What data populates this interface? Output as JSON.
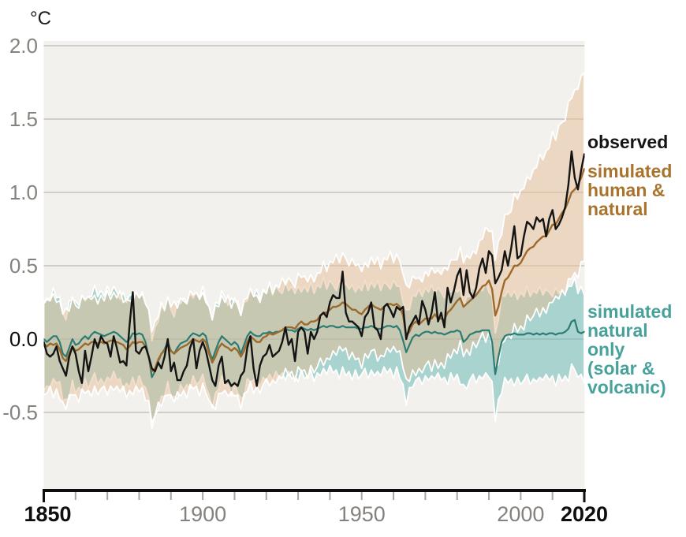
{
  "unit_label": "°C",
  "colors": {
    "plot_background": "#f2f1ee",
    "gridline": "#ccc9c5",
    "axis": "#0e0e0e",
    "minor_tick": "#a8a6a2",
    "muted_label": "#85827d",
    "observed_line": "#141414",
    "human_natural_line": "#9c6a2d",
    "natural_only_line": "#2d7c74",
    "human_natural_band": "#e6bd96",
    "natural_only_band": "#6dbab4",
    "band_outline": "#ffffff",
    "legend_observed_text": "#141414",
    "legend_human_natural_text": "#a9732e",
    "legend_natural_only_text": "#47a29b"
  },
  "legend": {
    "observed": {
      "lines": [
        "observed"
      ]
    },
    "human_natural": {
      "lines": [
        "simulated",
        "human &",
        "natural"
      ]
    },
    "natural_only": {
      "lines": [
        "simulated",
        "natural only",
        "(solar &",
        "volcanic)"
      ]
    }
  },
  "chart_data": {
    "type": "line",
    "title": "",
    "xlabel": "",
    "ylabel": "°C",
    "x_start": 1850,
    "x_end": 2020,
    "ylim": [
      -1.05,
      2.03
    ],
    "grid": true,
    "legend_position": "right",
    "y_ticks": [
      {
        "value": 2.0,
        "label": "2.0"
      },
      {
        "value": 1.5,
        "label": "1.5"
      },
      {
        "value": 1.0,
        "label": "1.0"
      },
      {
        "value": 0.5,
        "label": "0.5"
      },
      {
        "value": 0.0,
        "label": "0.0",
        "strong": true
      },
      {
        "value": -0.5,
        "label": "-0.5"
      }
    ],
    "x_ticks": [
      {
        "year": 1850,
        "label": "1850",
        "major": true
      },
      {
        "year": 1860
      },
      {
        "year": 1870
      },
      {
        "year": 1880
      },
      {
        "year": 1890
      },
      {
        "year": 1900,
        "label": "1900"
      },
      {
        "year": 1910
      },
      {
        "year": 1920
      },
      {
        "year": 1930
      },
      {
        "year": 1940
      },
      {
        "year": 1950,
        "label": "1950"
      },
      {
        "year": 1960
      },
      {
        "year": 1970
      },
      {
        "year": 1980
      },
      {
        "year": 1990
      },
      {
        "year": 2000,
        "label": "2000"
      },
      {
        "year": 2010
      },
      {
        "year": 2020,
        "label": "2020",
        "major": true
      }
    ],
    "band_jitter": [
      0.0,
      0.05,
      0.02,
      0.08,
      0.01,
      0.06,
      0.03,
      0.09,
      0.02,
      0.07,
      0.04,
      0.01,
      0.08,
      0.03,
      0.06,
      0.02,
      0.05
    ],
    "series": [
      {
        "id": "observed",
        "name": "observed",
        "color": "#141414",
        "values": [
          -0.02,
          -0.1,
          -0.12,
          -0.1,
          -0.05,
          -0.15,
          -0.2,
          -0.25,
          -0.12,
          -0.05,
          -0.1,
          -0.22,
          -0.3,
          -0.08,
          -0.22,
          -0.12,
          0.0,
          -0.06,
          0.02,
          -0.02,
          -0.03,
          -0.12,
          0.02,
          -0.06,
          -0.16,
          -0.15,
          -0.18,
          0.1,
          0.32,
          -0.08,
          -0.1,
          -0.06,
          -0.05,
          -0.12,
          -0.2,
          -0.22,
          -0.16,
          -0.2,
          -0.12,
          0.0,
          -0.22,
          -0.16,
          -0.28,
          -0.28,
          -0.22,
          -0.18,
          -0.06,
          0.0,
          -0.2,
          -0.08,
          -0.02,
          -0.08,
          -0.18,
          -0.28,
          -0.32,
          -0.18,
          -0.12,
          -0.3,
          -0.28,
          -0.32,
          -0.3,
          -0.32,
          -0.25,
          -0.22,
          -0.06,
          0.02,
          -0.2,
          -0.32,
          -0.18,
          -0.12,
          -0.1,
          -0.04,
          -0.12,
          -0.1,
          -0.08,
          -0.02,
          0.08,
          -0.04,
          0.0,
          -0.15,
          0.05,
          0.08,
          0.05,
          -0.1,
          0.05,
          0.0,
          0.05,
          0.16,
          0.18,
          0.15,
          0.25,
          0.3,
          0.28,
          0.28,
          0.46,
          0.18,
          0.12,
          0.12,
          0.1,
          0.08,
          0.02,
          0.15,
          0.18,
          0.25,
          0.08,
          0.06,
          0.0,
          0.22,
          0.24,
          0.2,
          0.15,
          0.22,
          0.2,
          0.22,
          0.0,
          0.08,
          0.12,
          0.16,
          0.1,
          0.26,
          0.2,
          0.1,
          0.18,
          0.32,
          0.12,
          0.18,
          0.08,
          0.35,
          0.25,
          0.33,
          0.43,
          0.48,
          0.3,
          0.47,
          0.32,
          0.28,
          0.35,
          0.48,
          0.55,
          0.45,
          0.6,
          0.57,
          0.38,
          0.42,
          0.47,
          0.6,
          0.5,
          0.62,
          0.77,
          0.55,
          0.57,
          0.7,
          0.8,
          0.78,
          0.75,
          0.83,
          0.8,
          0.82,
          0.7,
          0.82,
          0.88,
          0.75,
          0.78,
          0.83,
          0.9,
          1.05,
          1.28,
          1.1,
          1.02,
          1.15,
          1.26
        ]
      },
      {
        "id": "human_natural",
        "name": "simulated human & natural",
        "color": "#9c6a2d",
        "band": {
          "fill": "#e6bd96",
          "fill_opacity": 0.5,
          "stroke": "#ffffff",
          "hi_offset": 0.27,
          "lo_offset": 0.28,
          "hi_phase": 0,
          "lo_phase": 9,
          "widen_after": 1985,
          "hi_widen": 0.011,
          "lo_widen": 0.008
        },
        "values": [
          -0.03,
          -0.05,
          -0.03,
          -0.04,
          -0.03,
          -0.07,
          -0.13,
          -0.15,
          -0.1,
          -0.05,
          -0.08,
          -0.07,
          -0.05,
          -0.03,
          -0.04,
          -0.02,
          -0.02,
          -0.03,
          -0.02,
          -0.03,
          -0.02,
          -0.01,
          -0.01,
          -0.02,
          -0.03,
          -0.04,
          -0.07,
          -0.05,
          -0.02,
          -0.03,
          -0.02,
          -0.02,
          -0.05,
          -0.12,
          -0.22,
          -0.2,
          -0.14,
          -0.1,
          -0.08,
          -0.04,
          -0.08,
          -0.1,
          -0.08,
          -0.06,
          -0.05,
          -0.04,
          -0.02,
          0.0,
          -0.01,
          -0.02,
          0.0,
          -0.02,
          -0.1,
          -0.16,
          -0.12,
          -0.06,
          -0.03,
          -0.05,
          -0.06,
          -0.08,
          -0.06,
          -0.08,
          -0.12,
          -0.08,
          -0.02,
          0.02,
          0.0,
          -0.02,
          -0.02,
          0.01,
          0.02,
          0.04,
          0.03,
          0.04,
          0.05,
          0.06,
          0.08,
          0.08,
          0.08,
          0.07,
          0.1,
          0.12,
          0.1,
          0.1,
          0.12,
          0.12,
          0.13,
          0.16,
          0.18,
          0.18,
          0.2,
          0.22,
          0.22,
          0.23,
          0.25,
          0.24,
          0.22,
          0.2,
          0.2,
          0.18,
          0.17,
          0.2,
          0.22,
          0.24,
          0.22,
          0.21,
          0.2,
          0.22,
          0.24,
          0.24,
          0.23,
          0.24,
          0.22,
          0.16,
          0.02,
          0.05,
          0.1,
          0.12,
          0.1,
          0.12,
          0.14,
          0.14,
          0.14,
          0.17,
          0.14,
          0.14,
          0.13,
          0.18,
          0.2,
          0.23,
          0.26,
          0.28,
          0.22,
          0.24,
          0.26,
          0.28,
          0.3,
          0.33,
          0.36,
          0.37,
          0.4,
          0.34,
          0.16,
          0.22,
          0.32,
          0.4,
          0.42,
          0.46,
          0.5,
          0.5,
          0.52,
          0.56,
          0.6,
          0.62,
          0.63,
          0.66,
          0.68,
          0.7,
          0.7,
          0.74,
          0.78,
          0.78,
          0.82,
          0.86,
          0.89,
          0.94,
          1.0,
          1.02,
          1.05,
          1.1,
          1.16
        ]
      },
      {
        "id": "natural_only",
        "name": "simulated natural only (solar & volcanic)",
        "color": "#2d7c74",
        "band": {
          "fill": "#6dbab4",
          "fill_opacity": 0.55,
          "stroke": "#ffffff",
          "hi_offset": 0.24,
          "lo_offset": 0.27,
          "hi_phase": 4,
          "lo_phase": 12,
          "widen_after": null,
          "hi_widen": 0,
          "lo_widen": 0
        },
        "values": [
          0.0,
          -0.02,
          0.0,
          0.02,
          0.02,
          -0.02,
          -0.1,
          -0.12,
          -0.06,
          0.0,
          -0.04,
          -0.03,
          0.0,
          0.02,
          0.0,
          0.03,
          0.05,
          0.04,
          0.03,
          0.02,
          0.03,
          0.04,
          0.05,
          0.04,
          0.02,
          0.0,
          -0.02,
          0.0,
          0.04,
          0.03,
          0.04,
          0.03,
          -0.02,
          -0.12,
          -0.26,
          -0.22,
          -0.15,
          -0.1,
          -0.07,
          -0.02,
          -0.08,
          -0.1,
          -0.06,
          -0.03,
          -0.02,
          -0.01,
          0.02,
          0.04,
          0.03,
          0.02,
          0.04,
          0.02,
          -0.08,
          -0.14,
          -0.08,
          -0.02,
          0.02,
          0.0,
          -0.02,
          -0.04,
          -0.02,
          -0.04,
          -0.1,
          -0.04,
          0.02,
          0.05,
          0.03,
          0.02,
          0.02,
          0.04,
          0.04,
          0.05,
          0.04,
          0.05,
          0.05,
          0.06,
          0.07,
          0.06,
          0.06,
          0.05,
          0.07,
          0.08,
          0.07,
          0.06,
          0.07,
          0.06,
          0.07,
          0.08,
          0.09,
          0.08,
          0.09,
          0.09,
          0.08,
          0.08,
          0.09,
          0.08,
          0.08,
          0.08,
          0.08,
          0.07,
          0.07,
          0.08,
          0.08,
          0.09,
          0.08,
          0.07,
          0.07,
          0.08,
          0.09,
          0.09,
          0.08,
          0.09,
          0.06,
          -0.01,
          -0.09,
          -0.04,
          0.01,
          0.03,
          0.02,
          0.04,
          0.05,
          0.05,
          0.04,
          0.05,
          0.04,
          0.04,
          0.03,
          0.04,
          0.05,
          0.05,
          0.06,
          0.05,
          -0.02,
          0.0,
          0.03,
          0.04,
          0.05,
          0.05,
          0.06,
          0.06,
          0.06,
          -0.02,
          -0.24,
          -0.12,
          -0.02,
          0.02,
          0.03,
          0.03,
          0.04,
          0.03,
          0.03,
          0.03,
          0.04,
          0.04,
          0.03,
          0.04,
          0.03,
          0.04,
          0.03,
          0.04,
          0.04,
          0.03,
          0.04,
          0.04,
          0.05,
          0.07,
          0.12,
          0.13,
          0.05,
          0.04,
          0.05
        ]
      }
    ]
  }
}
